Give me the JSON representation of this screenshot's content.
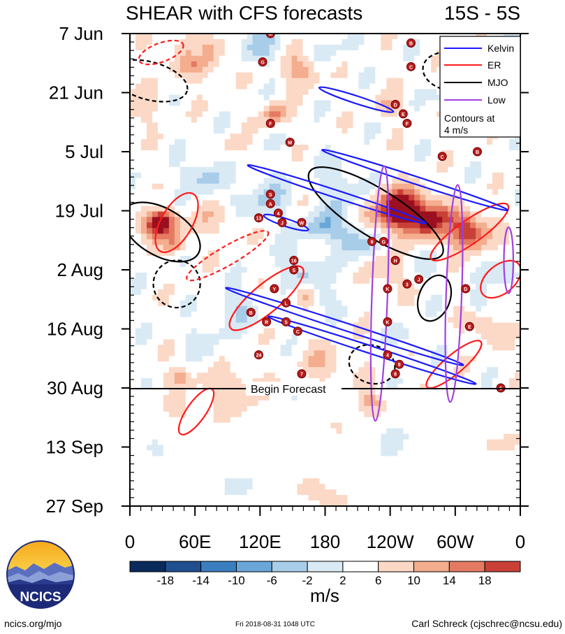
{
  "header": {
    "title": "SHEAR with CFS forecasts",
    "region": "15S - 5S"
  },
  "chart_data": {
    "type": "heatmap",
    "title": "SHEAR with CFS forecasts",
    "region": "15S - 5S",
    "x_labels": [
      "0",
      "60E",
      "120E",
      "180",
      "120W",
      "60W",
      "0"
    ],
    "x_range_deg": [
      0,
      360
    ],
    "y_labels": [
      "7 Jun",
      "21 Jun",
      "5 Jul",
      "19 Jul",
      "2 Aug",
      "16 Aug",
      "30 Aug",
      "13 Sep",
      "27 Sep"
    ],
    "y_range_days": [
      0,
      112
    ],
    "forecast_start_day": 84,
    "forecast_label": "Begin Forecast",
    "units": "m/s",
    "colorbar": {
      "levels": [
        "-18",
        "-14",
        "-10",
        "-6",
        "-2",
        "2",
        "6",
        "10",
        "14",
        "18"
      ],
      "colors": [
        "#0b2a5c",
        "#1f4f8f",
        "#3b7ec0",
        "#6aa7d8",
        "#a8cde9",
        "#d9eaf5",
        "#ffffff",
        "#fbd9c6",
        "#f4ad8e",
        "#e47a62",
        "#c94037",
        "#9b1020",
        "#650014"
      ]
    },
    "legend": {
      "position": "top-right",
      "items": [
        {
          "name": "Kelvin",
          "color": "#1a1aff"
        },
        {
          "name": "ER",
          "color": "#ff1a1a"
        },
        {
          "name": "MJO",
          "color": "#000000"
        },
        {
          "name": "Low",
          "color": "#a040e0"
        }
      ],
      "note": "Contours at 4 m/s"
    },
    "storms": [
      "M",
      "G",
      "B",
      "C",
      "D",
      "E",
      "F",
      "F",
      "M",
      "C",
      "B",
      "S",
      "A",
      "4",
      "13",
      "J",
      "W",
      "9",
      "G",
      "H",
      "3",
      "K",
      "J",
      "16",
      "S",
      "Y",
      "L",
      "B",
      "R",
      "S",
      "C",
      "24",
      "E",
      "K",
      "4",
      "8",
      "9",
      "7",
      "6",
      "D"
    ]
  },
  "footer": {
    "logo_text": "NCICS",
    "left": "ncics.org/mjo",
    "center": "Fri 2018-08-31 1048 UTC",
    "right": "Carl Schreck (cjschrec@ncsu.edu)"
  }
}
